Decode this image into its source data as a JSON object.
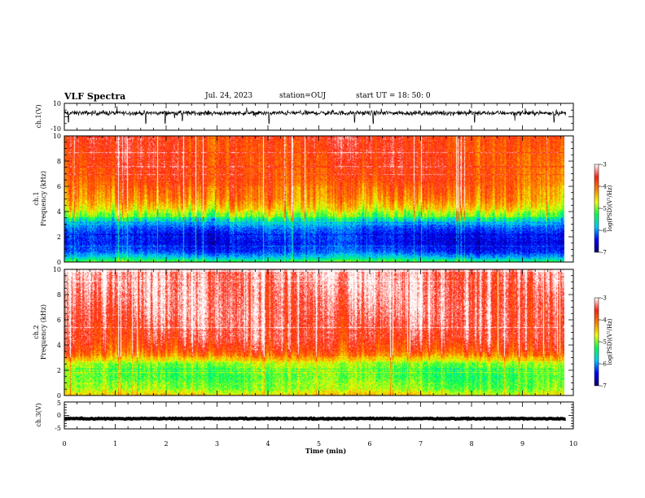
{
  "header": {
    "title": "VLF Spectra",
    "date": "Jul. 24, 2023",
    "station": "station=OUJ",
    "start": "start UT =  18: 50: 0"
  },
  "colors": {
    "waveform": "#000000",
    "colormap": [
      "#0a0064",
      "#0000ff",
      "#00c8ff",
      "#00ff50",
      "#f0ff00",
      "#ff8000",
      "#ff2010",
      "#ffffff"
    ]
  },
  "chart_data": [
    {
      "type": "line",
      "name": "ch1-waveform",
      "ylabel": "ch.1(V)",
      "ylim": [
        -10,
        10
      ],
      "yticks": [
        "10",
        "-10"
      ],
      "x_range_min": [
        0,
        9.85
      ],
      "baseline_v": 2.8,
      "noise_v": 1.5,
      "spikes": [
        {
          "t": 0.08,
          "v": -4
        },
        {
          "t": 0.27,
          "v": 3
        },
        {
          "t": 1.6,
          "v": -5
        },
        {
          "t": 1.98,
          "v": -5
        },
        {
          "t": 2.32,
          "v": -3
        },
        {
          "t": 3.4,
          "v": 3
        },
        {
          "t": 4.02,
          "v": -5
        },
        {
          "t": 5.2,
          "v": 4
        },
        {
          "t": 5.7,
          "v": -4
        },
        {
          "t": 6.07,
          "v": -5
        },
        {
          "t": 8.06,
          "v": -4
        },
        {
          "t": 8.85,
          "v": -3
        },
        {
          "t": 9.62,
          "v": -4
        }
      ]
    },
    {
      "type": "heatmap",
      "name": "ch1-spectrogram",
      "ylabel": "ch.1\nFrequency (kHz)",
      "ylim": [
        0,
        10
      ],
      "yticks": [
        "0",
        "2",
        "4",
        "6",
        "8",
        "10"
      ],
      "colorbar": {
        "label": "log(PSD)(V²/Hz)",
        "range": [
          -7,
          -3
        ],
        "ticks": [
          "-3",
          "-4",
          "-5",
          "-6",
          "-7"
        ]
      },
      "profile_khz": [
        [
          0,
          -5.2
        ],
        [
          0.3,
          -5.8
        ],
        [
          0.8,
          -6.3
        ],
        [
          1.5,
          -6.5
        ],
        [
          2.5,
          -6.3
        ],
        [
          3.2,
          -5.9
        ],
        [
          3.6,
          -5.2
        ],
        [
          4.2,
          -4.6
        ],
        [
          5,
          -4.2
        ],
        [
          6.5,
          -3.9
        ],
        [
          8,
          -3.8
        ],
        [
          10,
          -3.75
        ]
      ]
    },
    {
      "type": "heatmap",
      "name": "ch2-spectrogram",
      "ylabel": "ch.2\nFrequency (kHz)",
      "ylim": [
        0,
        10
      ],
      "yticks": [
        "0",
        "2",
        "4",
        "6",
        "8",
        "10"
      ],
      "colorbar": {
        "label": "log(PSD)(V²/Hz)",
        "range": [
          -7,
          -3
        ],
        "ticks": [
          "-3",
          "-4",
          "-5",
          "-6",
          "-7"
        ]
      },
      "profile_khz": [
        [
          0,
          -4.6
        ],
        [
          0.5,
          -5.0
        ],
        [
          1.5,
          -5.2
        ],
        [
          2.5,
          -5.0
        ],
        [
          3.0,
          -4.4
        ],
        [
          3.5,
          -3.9
        ],
        [
          4.5,
          -3.6
        ],
        [
          6,
          -3.45
        ],
        [
          8,
          -3.35
        ],
        [
          10,
          -3.3
        ]
      ]
    },
    {
      "type": "line",
      "name": "ch3-waveform",
      "ylabel": "ch.3(V)",
      "ylim": [
        -5,
        5
      ],
      "yticks": [
        "5",
        "0",
        "-5"
      ],
      "x_range_min": [
        0,
        9.85
      ],
      "baseline_v": -1.2,
      "noise_v": 0.15
    }
  ],
  "xaxis": {
    "label": "Time (min)",
    "range": [
      0,
      10
    ],
    "ticks": [
      "0",
      "1",
      "2",
      "3",
      "4",
      "5",
      "6",
      "7",
      "8",
      "9",
      "10"
    ]
  }
}
